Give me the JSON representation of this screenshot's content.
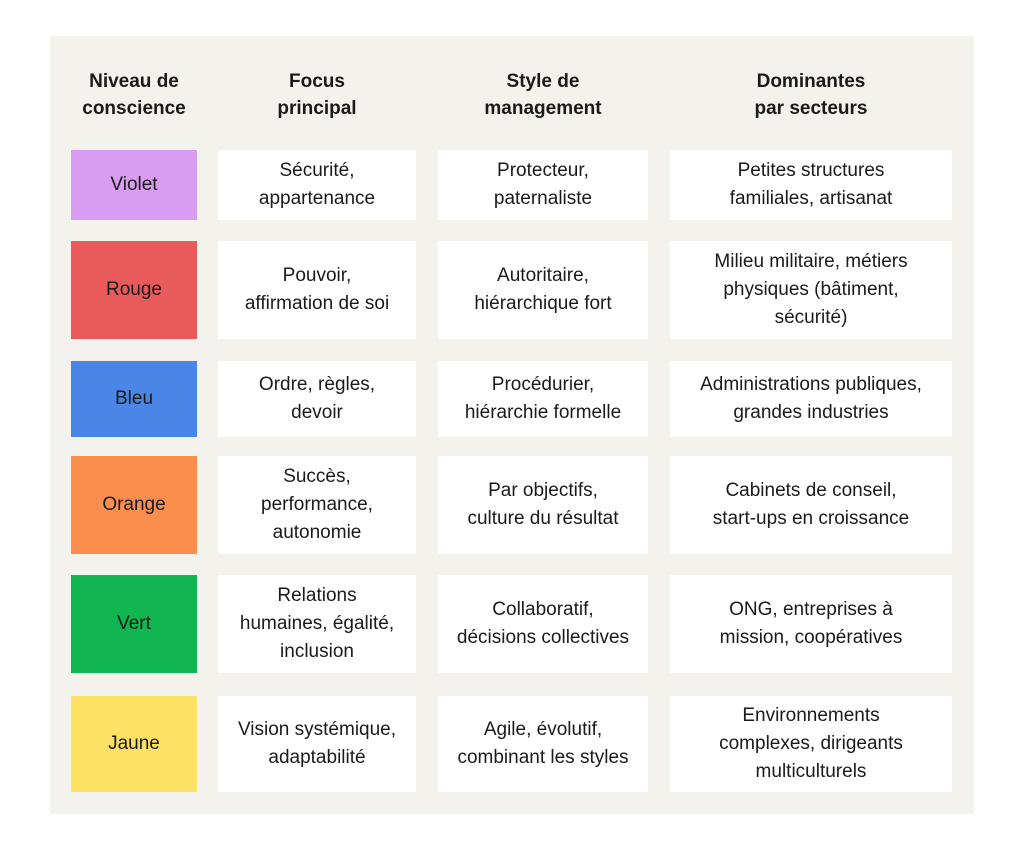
{
  "headers": [
    "Niveau de\nconscience",
    "Focus\nprincipal",
    "Style de\nmanagement",
    "Dominantes\npar secteurs"
  ],
  "rows": [
    {
      "level": "Violet",
      "color": "#d89cf0",
      "focus": "Sécurité,\nappartenance",
      "style": "Protecteur,\npaternaliste",
      "sectors": "Petites structures\nfamiliales, artisanat"
    },
    {
      "level": "Rouge",
      "color": "#e95b5b",
      "focus": "Pouvoir,\naffirmation de soi",
      "style": "Autoritaire,\nhiérarchique fort",
      "sectors": "Milieu militaire, métiers\nphysiques (bâtiment,\nsécurité)"
    },
    {
      "level": "Bleu",
      "color": "#4a86e6",
      "focus": "Ordre, règles,\ndevoir",
      "style": "Procédurier,\nhiérarchie formelle",
      "sectors": "Administrations publiques,\ngrandes industries"
    },
    {
      "level": "Orange",
      "color": "#fb8d4d",
      "focus": "Succès,\nperformance,\nautonomie",
      "style": "Par objectifs,\nculture du résultat",
      "sectors": "Cabinets de conseil,\nstart-ups en croissance"
    },
    {
      "level": "Vert",
      "color": "#12b651",
      "focus": "Relations\nhumaines, égalité,\ninclusion",
      "style": "Collaboratif,\ndécisions collectives",
      "sectors": "ONG, entreprises à\nmission, coopératives"
    },
    {
      "level": "Jaune",
      "color": "#fde165",
      "focus": "Vision systémique,\nadaptabilité",
      "style": "Agile, évolutif,\ncombinant les styles",
      "sectors": "Environnements\ncomplexes, dirigeants\nmulticulturels"
    }
  ]
}
